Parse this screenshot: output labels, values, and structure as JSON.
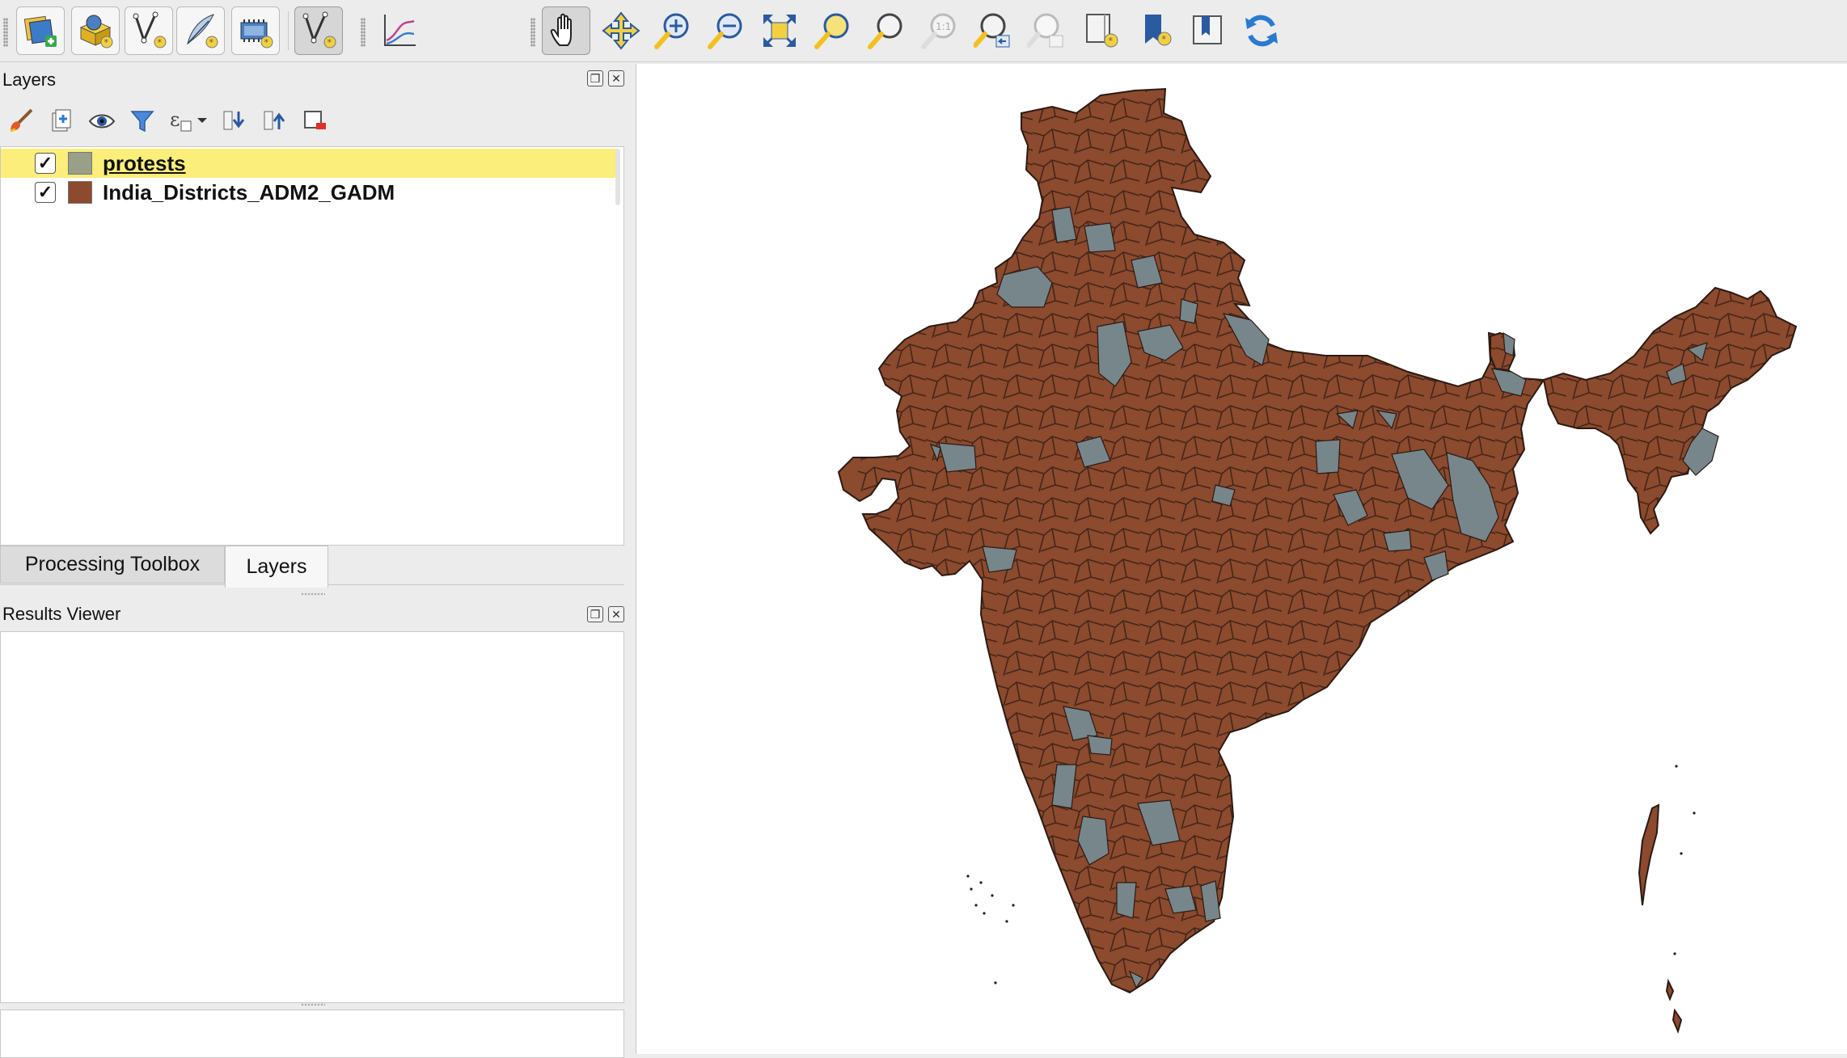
{
  "toolbar": {
    "icons": [
      "add-raster-layer",
      "add-spatialite-layer",
      "new-vector-layer",
      "digitize-line",
      "new-temp-layer",
      "vertex-tool",
      "profile-plot",
      "pan-map",
      "pan-to-selection",
      "zoom-in",
      "zoom-out",
      "zoom-full",
      "zoom-to-selection",
      "zoom-to-layer",
      "zoom-native",
      "zoom-last",
      "zoom-next",
      "new-map-view",
      "new-bookmark",
      "show-bookmarks",
      "refresh"
    ],
    "one_to_one_label": "1:1"
  },
  "layers_panel": {
    "title": "Layers",
    "layers": [
      {
        "name": "protests",
        "checked": true,
        "color": "#9a9f87",
        "selected": true
      },
      {
        "name": "India_Districts_ADM2_GADM",
        "checked": true,
        "color": "#8c4a2e",
        "selected": false
      }
    ]
  },
  "tabs": {
    "processing_toolbox": "Processing Toolbox",
    "layers": "Layers"
  },
  "results_viewer": {
    "title": "Results Viewer"
  },
  "map": {
    "district_color": "#8c4a2e",
    "protest_color": "#77868b",
    "outline_color": "#2a1a12",
    "background": "#ffffff"
  }
}
